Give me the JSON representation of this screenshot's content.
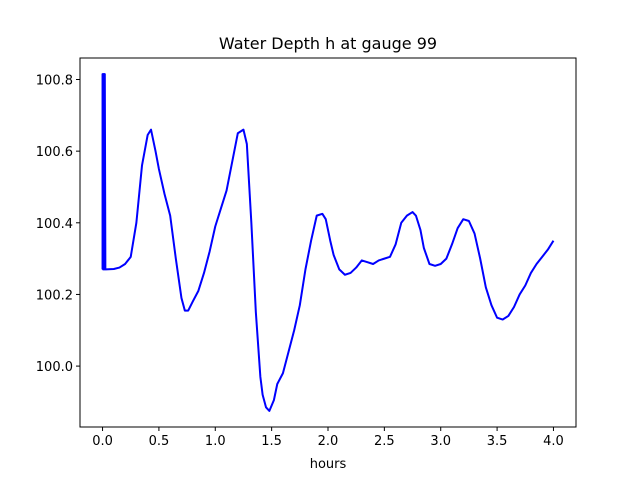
{
  "chart_data": {
    "type": "line",
    "title": "Water Depth h at gauge 99",
    "xlabel": "hours",
    "ylabel": "",
    "xlim": [
      -0.2,
      4.2
    ],
    "ylim": [
      99.83,
      100.86
    ],
    "xticks": [
      0.0,
      0.5,
      1.0,
      1.5,
      2.0,
      2.5,
      3.0,
      3.5,
      4.0
    ],
    "xtick_labels": [
      "0.0",
      "0.5",
      "1.0",
      "1.5",
      "2.0",
      "2.5",
      "3.0",
      "3.5",
      "4.0"
    ],
    "yticks": [
      100.0,
      100.2,
      100.4,
      100.6,
      100.8
    ],
    "ytick_labels": [
      "100.0",
      "100.2",
      "100.4",
      "100.6",
      "100.8"
    ],
    "grid": false,
    "legend": "none",
    "series": [
      {
        "color": "#0000ff",
        "x": [
          0.0,
          0.0,
          0.005,
          0.005,
          0.01,
          0.01,
          0.015,
          0.015,
          0.02,
          0.02,
          0.025,
          0.03,
          0.1,
          0.15,
          0.2,
          0.25,
          0.3,
          0.35,
          0.4,
          0.43,
          0.47,
          0.5,
          0.55,
          0.6,
          0.65,
          0.7,
          0.73,
          0.76,
          0.8,
          0.85,
          0.9,
          0.95,
          1.0,
          1.05,
          1.1,
          1.15,
          1.2,
          1.25,
          1.28,
          1.32,
          1.36,
          1.4,
          1.42,
          1.45,
          1.48,
          1.52,
          1.55,
          1.6,
          1.65,
          1.7,
          1.75,
          1.8,
          1.85,
          1.9,
          1.95,
          1.98,
          2.02,
          2.05,
          2.1,
          2.15,
          2.2,
          2.25,
          2.3,
          2.35,
          2.4,
          2.45,
          2.5,
          2.55,
          2.6,
          2.65,
          2.7,
          2.75,
          2.78,
          2.82,
          2.85,
          2.9,
          2.95,
          3.0,
          3.05,
          3.1,
          3.15,
          3.2,
          3.25,
          3.3,
          3.35,
          3.4,
          3.45,
          3.5,
          3.55,
          3.6,
          3.65,
          3.7,
          3.75,
          3.8,
          3.85,
          3.9,
          3.95,
          4.0
        ],
        "y": [
          100.27,
          100.815,
          100.815,
          100.27,
          100.27,
          100.815,
          100.815,
          100.27,
          100.27,
          100.815,
          100.27,
          100.27,
          100.271,
          100.275,
          100.285,
          100.305,
          100.4,
          100.56,
          100.645,
          100.66,
          100.6,
          100.55,
          100.48,
          100.42,
          100.3,
          100.19,
          100.155,
          100.155,
          100.18,
          100.21,
          100.26,
          100.32,
          100.39,
          100.44,
          100.49,
          100.57,
          100.65,
          100.66,
          100.62,
          100.4,
          100.15,
          99.97,
          99.92,
          99.885,
          99.875,
          99.905,
          99.95,
          99.98,
          100.04,
          100.1,
          100.17,
          100.27,
          100.35,
          100.42,
          100.425,
          100.41,
          100.35,
          100.31,
          100.27,
          100.255,
          100.26,
          100.275,
          100.295,
          100.29,
          100.285,
          100.295,
          100.3,
          100.305,
          100.34,
          100.4,
          100.42,
          100.43,
          100.42,
          100.38,
          100.33,
          100.285,
          100.28,
          100.285,
          100.3,
          100.34,
          100.385,
          100.41,
          100.405,
          100.37,
          100.3,
          100.22,
          100.17,
          100.135,
          100.13,
          100.14,
          100.165,
          100.2,
          100.225,
          100.26,
          100.285,
          100.305,
          100.325,
          100.35
        ]
      }
    ]
  }
}
